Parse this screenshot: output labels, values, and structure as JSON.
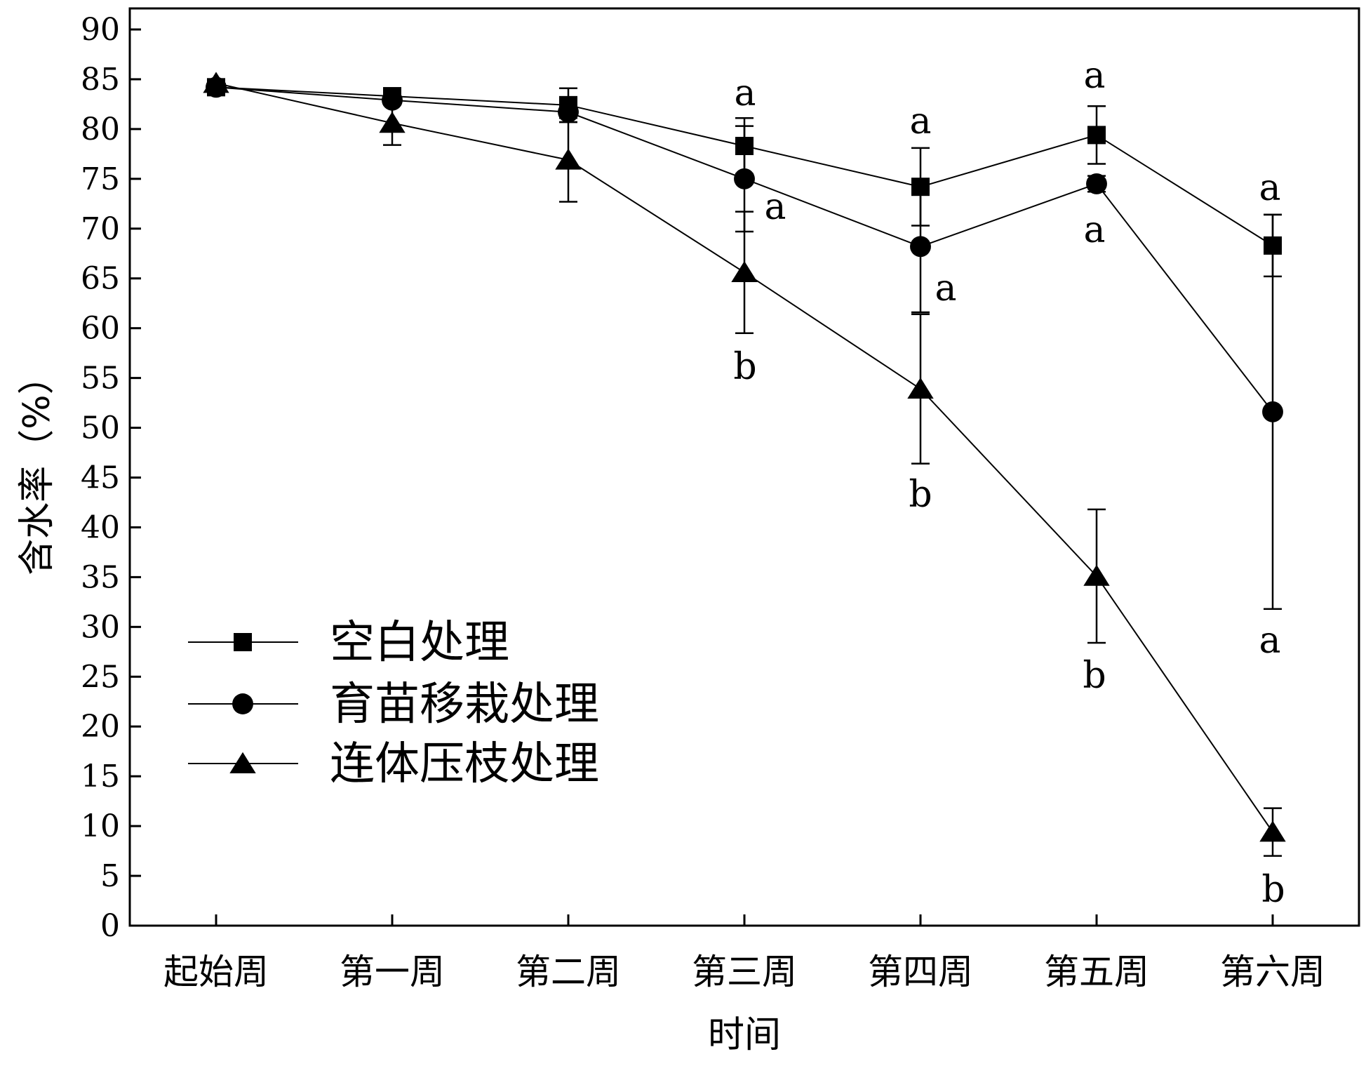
{
  "chart_data": {
    "type": "line",
    "title": "",
    "xlabel": "时间",
    "ylabel": "含水率（%）",
    "ylim": [
      0,
      90
    ],
    "yticks": [
      0,
      5,
      10,
      15,
      20,
      25,
      30,
      35,
      40,
      45,
      50,
      55,
      60,
      65,
      70,
      75,
      80,
      85,
      90
    ],
    "grid": false,
    "legend_position": "bottom-left",
    "categories": [
      "起始周",
      "第一周",
      "第二周",
      "第三周",
      "第四周",
      "第五周",
      "第六周"
    ],
    "series": [
      {
        "name": "空白处理",
        "marker": "square",
        "values": [
          84.2,
          83.3,
          82.4,
          78.3,
          74.2,
          79.4,
          68.3
        ],
        "error": [
          0.5,
          0.5,
          1.7,
          2.8,
          3.9,
          2.9,
          3.1
        ],
        "labels": [
          "",
          "",
          "",
          "a",
          "a",
          "a",
          "a"
        ]
      },
      {
        "name": "育苗移栽处理",
        "marker": "circle",
        "values": [
          84.2,
          82.9,
          81.7,
          75.0,
          68.2,
          74.5,
          51.6
        ],
        "error": [
          0.5,
          0.5,
          1.0,
          5.3,
          6.6,
          0.8,
          19.8
        ],
        "labels": [
          "",
          "",
          "",
          "a",
          "a",
          "a",
          "a"
        ]
      },
      {
        "name": "连体压枝处理",
        "marker": "triangle",
        "values": [
          84.6,
          80.6,
          76.9,
          65.6,
          53.9,
          35.1,
          9.4
        ],
        "error": [
          0.5,
          2.2,
          4.2,
          6.1,
          7.5,
          6.7,
          2.4
        ],
        "labels": [
          "",
          "",
          "",
          "b",
          "b",
          "b",
          "b"
        ]
      }
    ]
  }
}
